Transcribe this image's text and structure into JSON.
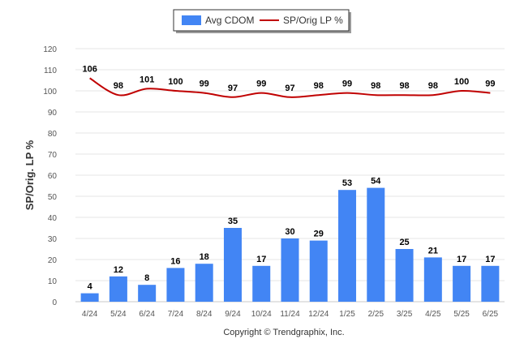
{
  "chart_data": {
    "type": "bar",
    "categories": [
      "4/24",
      "5/24",
      "6/24",
      "7/24",
      "8/24",
      "9/24",
      "10/24",
      "11/24",
      "12/24",
      "1/25",
      "2/25",
      "3/25",
      "4/25",
      "5/25",
      "6/25"
    ],
    "series": [
      {
        "name": "Avg CDOM",
        "kind": "bar",
        "color": "#4285f4",
        "values": [
          4,
          12,
          8,
          16,
          18,
          35,
          17,
          30,
          29,
          53,
          54,
          25,
          21,
          17,
          17
        ]
      },
      {
        "name": "SP/Orig LP %",
        "kind": "line",
        "color": "#c00000",
        "values": [
          106,
          98,
          101,
          100,
          99,
          97,
          99,
          97,
          98,
          99,
          98,
          98,
          98,
          100,
          99
        ]
      }
    ],
    "ylabel": "SP/Orig. LP %",
    "ylim": [
      0,
      120
    ],
    "yticks": [
      0,
      10,
      20,
      30,
      40,
      50,
      60,
      70,
      80,
      90,
      100,
      110,
      120
    ],
    "grid": true,
    "legend_position": "top-center"
  },
  "credit": "Copyright © Trendgraphix, Inc."
}
